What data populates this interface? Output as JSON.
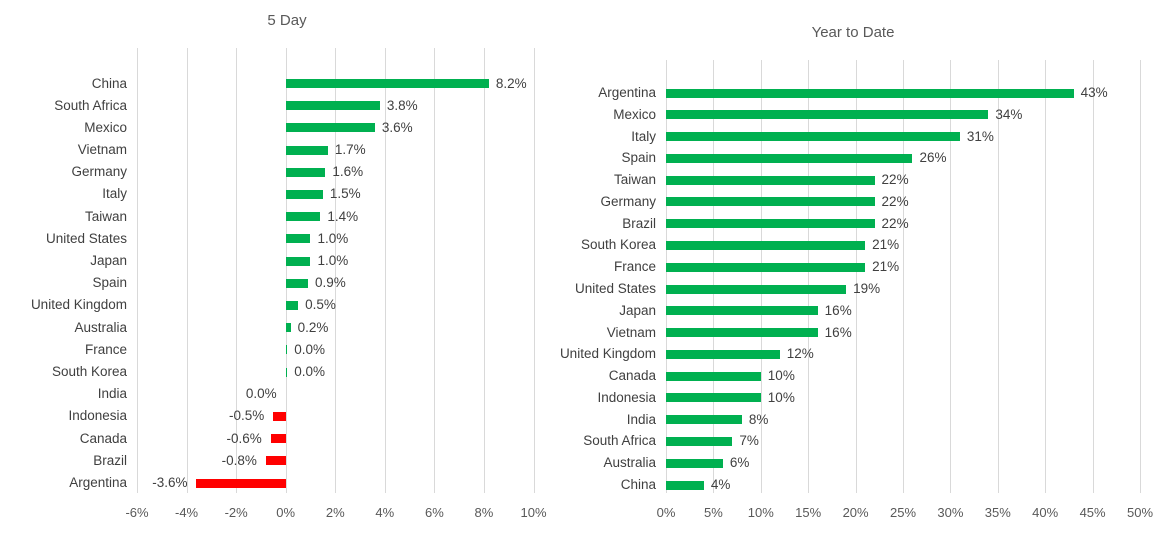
{
  "colors": {
    "positive_bar": "#00B050",
    "negative_bar": "#FF0000",
    "gridline": "#D9D9D9",
    "title_text": "#595959",
    "category_text": "#404040",
    "value_text": "#404040",
    "tick_text": "#595959",
    "background": "#FFFFFF"
  },
  "chart_data": [
    {
      "type": "bar",
      "orientation": "horizontal",
      "title": "5 Day",
      "xlim": [
        -6,
        10
      ],
      "grid": true,
      "legend": "none",
      "tick_values": [
        -6,
        -4,
        -2,
        0,
        2,
        4,
        6,
        8,
        10
      ],
      "ticks": [
        "-6%",
        "-4%",
        "-2%",
        "0%",
        "2%",
        "4%",
        "6%",
        "8%",
        "10%"
      ],
      "rows": [
        {
          "country": "China",
          "value": 8.2,
          "label": "8.2%",
          "side": "right"
        },
        {
          "country": "South Africa",
          "value": 3.8,
          "label": "3.8%",
          "side": "right"
        },
        {
          "country": "Mexico",
          "value": 3.6,
          "label": "3.6%",
          "side": "right"
        },
        {
          "country": "Vietnam",
          "value": 1.7,
          "label": "1.7%",
          "side": "right"
        },
        {
          "country": "Germany",
          "value": 1.6,
          "label": "1.6%",
          "side": "right"
        },
        {
          "country": "Italy",
          "value": 1.5,
          "label": "1.5%",
          "side": "right"
        },
        {
          "country": "Taiwan",
          "value": 1.4,
          "label": "1.4%",
          "side": "right"
        },
        {
          "country": "United States",
          "value": 1.0,
          "label": "1.0%",
          "side": "right"
        },
        {
          "country": "Japan",
          "value": 1.0,
          "label": "1.0%",
          "side": "right"
        },
        {
          "country": "Spain",
          "value": 0.9,
          "label": "0.9%",
          "side": "right"
        },
        {
          "country": "United Kingdom",
          "value": 0.5,
          "label": "0.5%",
          "side": "right"
        },
        {
          "country": "Australia",
          "value": 0.2,
          "label": "0.2%",
          "side": "right"
        },
        {
          "country": "France",
          "value": 0.0,
          "label": "0.0%",
          "side": "right"
        },
        {
          "country": "South Korea",
          "value": 0.0,
          "label": "0.0%",
          "side": "right"
        },
        {
          "country": "India",
          "value": 0.0,
          "label": "0.0%",
          "side": "left"
        },
        {
          "country": "Indonesia",
          "value": -0.5,
          "label": "-0.5%",
          "side": "left"
        },
        {
          "country": "Canada",
          "value": -0.6,
          "label": "-0.6%",
          "side": "left"
        },
        {
          "country": "Brazil",
          "value": -0.8,
          "label": "-0.8%",
          "side": "left"
        },
        {
          "country": "Argentina",
          "value": -3.6,
          "label": "-3.6%",
          "side": "left"
        }
      ]
    },
    {
      "type": "bar",
      "orientation": "horizontal",
      "title": "Year to Date",
      "xlim": [
        0,
        50
      ],
      "grid": true,
      "legend": "none",
      "tick_values": [
        0,
        5,
        10,
        15,
        20,
        25,
        30,
        35,
        40,
        45,
        50
      ],
      "ticks": [
        "0%",
        "5%",
        "10%",
        "15%",
        "20%",
        "25%",
        "30%",
        "35%",
        "40%",
        "45%",
        "50%"
      ],
      "rows": [
        {
          "country": "Argentina",
          "value": 43,
          "label": "43%",
          "side": "right"
        },
        {
          "country": "Mexico",
          "value": 34,
          "label": "34%",
          "side": "right"
        },
        {
          "country": "Italy",
          "value": 31,
          "label": "31%",
          "side": "right"
        },
        {
          "country": "Spain",
          "value": 26,
          "label": "26%",
          "side": "right"
        },
        {
          "country": "Taiwan",
          "value": 22,
          "label": "22%",
          "side": "right"
        },
        {
          "country": "Germany",
          "value": 22,
          "label": "22%",
          "side": "right"
        },
        {
          "country": "Brazil",
          "value": 22,
          "label": "22%",
          "side": "right"
        },
        {
          "country": "South Korea",
          "value": 21,
          "label": "21%",
          "side": "right"
        },
        {
          "country": "France",
          "value": 21,
          "label": "21%",
          "side": "right"
        },
        {
          "country": "United States",
          "value": 19,
          "label": "19%",
          "side": "right"
        },
        {
          "country": "Japan",
          "value": 16,
          "label": "16%",
          "side": "right"
        },
        {
          "country": "Vietnam",
          "value": 16,
          "label": "16%",
          "side": "right"
        },
        {
          "country": "United Kingdom",
          "value": 12,
          "label": "12%",
          "side": "right"
        },
        {
          "country": "Canada",
          "value": 10,
          "label": "10%",
          "side": "right"
        },
        {
          "country": "Indonesia",
          "value": 10,
          "label": "10%",
          "side": "right"
        },
        {
          "country": "India",
          "value": 8,
          "label": "8%",
          "side": "right"
        },
        {
          "country": "South Africa",
          "value": 7,
          "label": "7%",
          "side": "right"
        },
        {
          "country": "Australia",
          "value": 6,
          "label": "6%",
          "side": "right"
        },
        {
          "country": "China",
          "value": 4,
          "label": "4%",
          "side": "right"
        }
      ]
    }
  ]
}
